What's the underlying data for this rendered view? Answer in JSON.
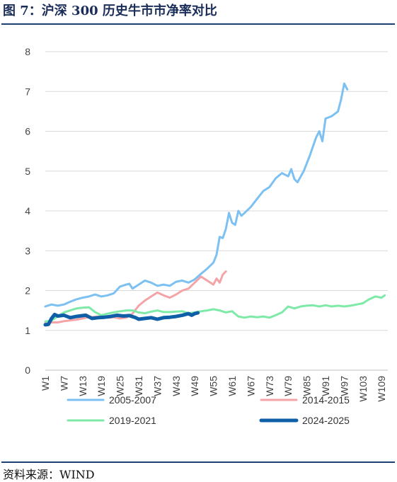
{
  "header": {
    "title": "图 7：沪深 300 历史牛市市净率对比"
  },
  "footer": {
    "source": "资料来源：WIND"
  },
  "chart_data": {
    "type": "line",
    "title": "图 7：沪深 300 历史牛市市净率对比",
    "xlabel": "",
    "ylabel": "",
    "ylim": [
      0,
      8
    ],
    "yticks": [
      0,
      1,
      2,
      3,
      4,
      5,
      6,
      7,
      8
    ],
    "x_range": [
      1,
      111
    ],
    "x_tick_labels": [
      "W1",
      "W7",
      "W13",
      "W19",
      "W25",
      "W31",
      "W37",
      "W43",
      "W49",
      "W55",
      "W61",
      "W67",
      "W73",
      "W79",
      "W85",
      "W91",
      "W97",
      "W103",
      "W109"
    ],
    "grid": "horizontal",
    "legend_position": "bottom",
    "series": [
      {
        "name": "2005-2007",
        "color": "#7cc1f2",
        "width": 3,
        "points": [
          [
            1,
            1.6
          ],
          [
            3,
            1.65
          ],
          [
            5,
            1.62
          ],
          [
            7,
            1.65
          ],
          [
            9,
            1.72
          ],
          [
            11,
            1.78
          ],
          [
            13,
            1.82
          ],
          [
            15,
            1.85
          ],
          [
            17,
            1.9
          ],
          [
            19,
            1.85
          ],
          [
            21,
            1.88
          ],
          [
            23,
            1.93
          ],
          [
            25,
            2.1
          ],
          [
            27,
            2.15
          ],
          [
            28,
            2.17
          ],
          [
            29,
            2.05
          ],
          [
            31,
            2.15
          ],
          [
            33,
            2.25
          ],
          [
            35,
            2.2
          ],
          [
            37,
            2.12
          ],
          [
            39,
            2.15
          ],
          [
            41,
            2.12
          ],
          [
            43,
            2.22
          ],
          [
            45,
            2.25
          ],
          [
            47,
            2.2
          ],
          [
            49,
            2.28
          ],
          [
            51,
            2.42
          ],
          [
            53,
            2.55
          ],
          [
            55,
            2.7
          ],
          [
            56,
            2.9
          ],
          [
            57,
            3.35
          ],
          [
            58,
            3.32
          ],
          [
            59,
            3.55
          ],
          [
            60,
            3.95
          ],
          [
            61,
            3.7
          ],
          [
            62,
            3.65
          ],
          [
            63,
            4.0
          ],
          [
            64,
            3.88
          ],
          [
            65,
            3.95
          ],
          [
            67,
            4.1
          ],
          [
            69,
            4.3
          ],
          [
            71,
            4.5
          ],
          [
            73,
            4.6
          ],
          [
            75,
            4.82
          ],
          [
            77,
            4.95
          ],
          [
            79,
            4.87
          ],
          [
            80,
            5.05
          ],
          [
            81,
            4.8
          ],
          [
            82,
            4.72
          ],
          [
            84,
            5.0
          ],
          [
            86,
            5.4
          ],
          [
            88,
            5.85
          ],
          [
            89,
            6.0
          ],
          [
            90,
            5.75
          ],
          [
            91,
            6.32
          ],
          [
            93,
            6.38
          ],
          [
            95,
            6.5
          ],
          [
            96,
            6.8
          ],
          [
            97,
            7.2
          ],
          [
            98,
            7.05
          ]
        ]
      },
      {
        "name": "2014-2015",
        "color": "#f4a3a7",
        "width": 3,
        "points": [
          [
            1,
            1.18
          ],
          [
            3,
            1.2
          ],
          [
            5,
            1.2
          ],
          [
            7,
            1.23
          ],
          [
            9,
            1.25
          ],
          [
            11,
            1.27
          ],
          [
            13,
            1.3
          ],
          [
            15,
            1.33
          ],
          [
            17,
            1.34
          ],
          [
            19,
            1.35
          ],
          [
            21,
            1.32
          ],
          [
            23,
            1.33
          ],
          [
            25,
            1.3
          ],
          [
            27,
            1.32
          ],
          [
            29,
            1.42
          ],
          [
            31,
            1.62
          ],
          [
            33,
            1.75
          ],
          [
            35,
            1.85
          ],
          [
            37,
            1.95
          ],
          [
            39,
            1.88
          ],
          [
            41,
            1.82
          ],
          [
            43,
            1.9
          ],
          [
            45,
            2.0
          ],
          [
            47,
            2.05
          ],
          [
            49,
            2.2
          ],
          [
            51,
            2.35
          ],
          [
            53,
            2.25
          ],
          [
            55,
            2.15
          ],
          [
            56,
            2.3
          ],
          [
            57,
            2.2
          ],
          [
            58,
            2.4
          ],
          [
            59,
            2.48
          ]
        ]
      },
      {
        "name": "2019-2021",
        "color": "#7deaa8",
        "width": 3,
        "points": [
          [
            1,
            1.22
          ],
          [
            3,
            1.25
          ],
          [
            5,
            1.35
          ],
          [
            7,
            1.45
          ],
          [
            9,
            1.5
          ],
          [
            11,
            1.55
          ],
          [
            13,
            1.57
          ],
          [
            15,
            1.58
          ],
          [
            17,
            1.46
          ],
          [
            19,
            1.38
          ],
          [
            21,
            1.42
          ],
          [
            23,
            1.45
          ],
          [
            25,
            1.48
          ],
          [
            27,
            1.5
          ],
          [
            29,
            1.5
          ],
          [
            31,
            1.45
          ],
          [
            33,
            1.43
          ],
          [
            35,
            1.47
          ],
          [
            37,
            1.5
          ],
          [
            39,
            1.46
          ],
          [
            41,
            1.46
          ],
          [
            43,
            1.47
          ],
          [
            45,
            1.48
          ],
          [
            47,
            1.43
          ],
          [
            49,
            1.45
          ],
          [
            51,
            1.48
          ],
          [
            53,
            1.5
          ],
          [
            55,
            1.53
          ],
          [
            57,
            1.5
          ],
          [
            59,
            1.45
          ],
          [
            61,
            1.48
          ],
          [
            63,
            1.35
          ],
          [
            65,
            1.32
          ],
          [
            67,
            1.35
          ],
          [
            69,
            1.33
          ],
          [
            71,
            1.35
          ],
          [
            73,
            1.32
          ],
          [
            75,
            1.38
          ],
          [
            77,
            1.45
          ],
          [
            79,
            1.6
          ],
          [
            81,
            1.55
          ],
          [
            83,
            1.6
          ],
          [
            85,
            1.62
          ],
          [
            87,
            1.63
          ],
          [
            89,
            1.6
          ],
          [
            91,
            1.63
          ],
          [
            93,
            1.6
          ],
          [
            95,
            1.62
          ],
          [
            97,
            1.6
          ],
          [
            99,
            1.62
          ],
          [
            101,
            1.65
          ],
          [
            103,
            1.68
          ],
          [
            105,
            1.78
          ],
          [
            107,
            1.85
          ],
          [
            109,
            1.82
          ],
          [
            110,
            1.88
          ]
        ]
      },
      {
        "name": "2024-2025",
        "color": "#0f5fa8",
        "width": 5,
        "points": [
          [
            1,
            1.14
          ],
          [
            2,
            1.15
          ],
          [
            3,
            1.3
          ],
          [
            4,
            1.4
          ],
          [
            5,
            1.36
          ],
          [
            7,
            1.38
          ],
          [
            9,
            1.32
          ],
          [
            11,
            1.35
          ],
          [
            13,
            1.37
          ],
          [
            14,
            1.38
          ],
          [
            16,
            1.3
          ],
          [
            18,
            1.32
          ],
          [
            20,
            1.33
          ],
          [
            22,
            1.35
          ],
          [
            24,
            1.38
          ],
          [
            26,
            1.36
          ],
          [
            28,
            1.37
          ],
          [
            30,
            1.32
          ],
          [
            31,
            1.28
          ],
          [
            33,
            1.3
          ],
          [
            35,
            1.32
          ],
          [
            37,
            1.28
          ],
          [
            39,
            1.32
          ],
          [
            41,
            1.33
          ],
          [
            43,
            1.35
          ],
          [
            45,
            1.38
          ],
          [
            47,
            1.42
          ],
          [
            48,
            1.38
          ],
          [
            49,
            1.42
          ],
          [
            50,
            1.44
          ]
        ]
      }
    ]
  }
}
